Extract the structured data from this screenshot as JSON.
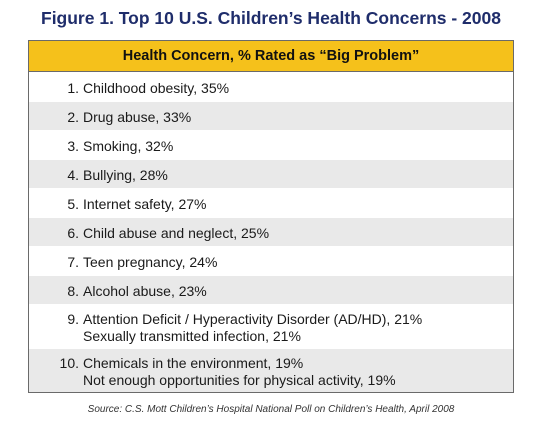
{
  "title": "Figure 1. Top 10 U.S. Children’s Health Concerns - 2008",
  "table": {
    "header": "Health Concern, % Rated as “Big Problem”",
    "rows": [
      {
        "num": "1.",
        "lines": [
          "Childhood obesity, 35%"
        ]
      },
      {
        "num": "2.",
        "lines": [
          "Drug abuse, 33%"
        ]
      },
      {
        "num": "3.",
        "lines": [
          "Smoking, 32%"
        ]
      },
      {
        "num": "4.",
        "lines": [
          "Bullying, 28%"
        ]
      },
      {
        "num": "5.",
        "lines": [
          "Internet safety, 27%"
        ]
      },
      {
        "num": "6.",
        "lines": [
          "Child abuse and neglect, 25%"
        ]
      },
      {
        "num": "7.",
        "lines": [
          "Teen pregnancy, 24%"
        ]
      },
      {
        "num": "8.",
        "lines": [
          "Alcohol abuse, 23%"
        ]
      },
      {
        "num": "9.",
        "lines": [
          "Attention Deficit / Hyperactivity Disorder (AD/HD), 21%",
          "Sexually transmitted infection, 21%"
        ]
      },
      {
        "num": "10.",
        "lines": [
          "Chemicals in the environment, 19%",
          "Not enough opportunities for physical activity, 19%"
        ]
      }
    ]
  },
  "source": "Source: C.S. Mott Children’s Hospital National Poll on Children’s Health, April 2008",
  "colors": {
    "title": "#1f2d6b",
    "header_bg": "#f5c11b",
    "alt_row_bg": "#e9e9e9"
  }
}
